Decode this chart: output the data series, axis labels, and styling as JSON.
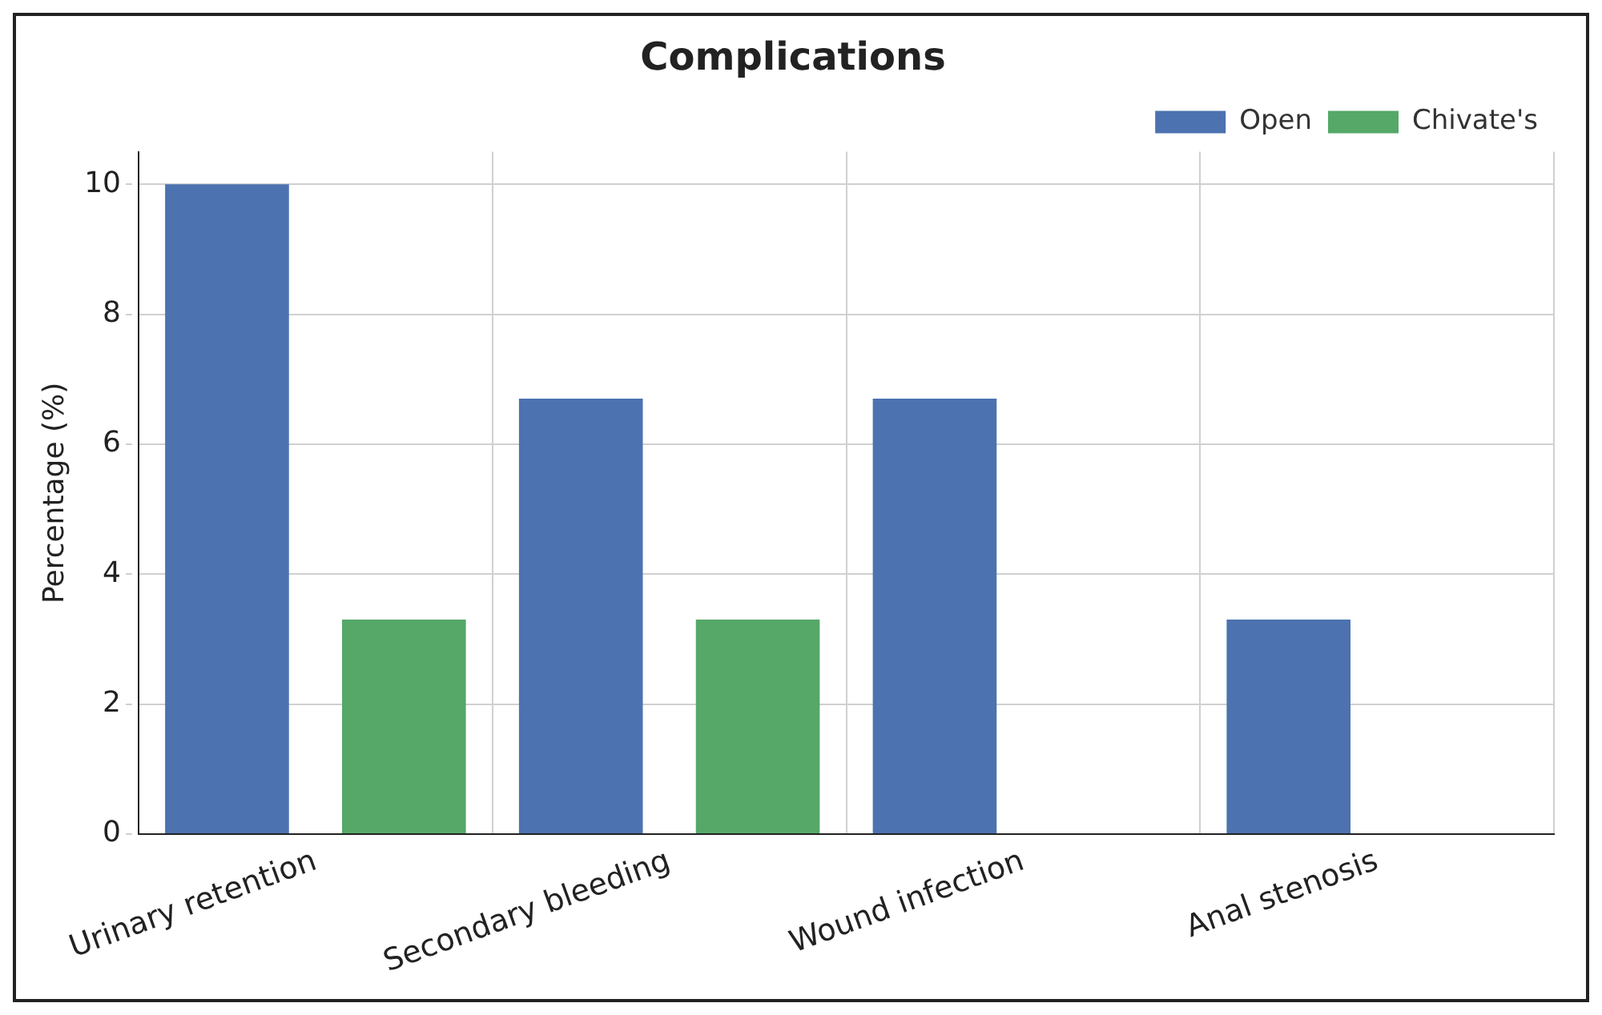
{
  "chart_data": {
    "type": "bar",
    "title": "Complications",
    "ylabel": "Percentage (%)",
    "categories": [
      "Urinary retention",
      "Secondary bleeding",
      "Wound infection",
      "Anal stenosis"
    ],
    "series": [
      {
        "name": "Open",
        "color": "#4c72b0",
        "values": [
          10,
          6.7,
          6.7,
          3.3
        ]
      },
      {
        "name": "Chivate's",
        "color": "#55a868",
        "values": [
          3.3,
          3.3,
          0,
          0
        ]
      }
    ],
    "ylim": [
      0,
      10.5
    ],
    "yticks": [
      0,
      2,
      4,
      6,
      8,
      10
    ],
    "grid": true,
    "legend": "top right"
  }
}
